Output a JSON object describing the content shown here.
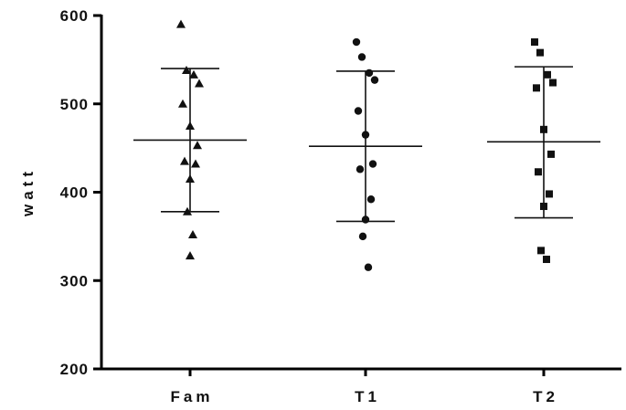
{
  "chart_data": {
    "type": "scatter",
    "ylabel": "watt",
    "ylim": [
      200,
      600
    ],
    "yticks": [
      200,
      300,
      400,
      500,
      600
    ],
    "categories": [
      "Fam",
      "T1",
      "T2"
    ],
    "series": [
      {
        "name": "",
        "category": "Fam",
        "marker": "triangle",
        "values": [
          590,
          538,
          533,
          523,
          500,
          475,
          453,
          435,
          432,
          415,
          378,
          352,
          328
        ],
        "mean": 459,
        "sd_upper": 540,
        "sd_lower": 378
      },
      {
        "name": "",
        "category": "T1",
        "marker": "circle",
        "values": [
          570,
          553,
          535,
          527,
          492,
          465,
          432,
          426,
          392,
          369,
          350,
          315
        ],
        "mean": 452,
        "sd_upper": 537,
        "sd_lower": 367
      },
      {
        "name": "",
        "category": "T2",
        "marker": "square",
        "values": [
          570,
          558,
          533,
          524,
          518,
          471,
          443,
          423,
          398,
          384,
          334,
          324
        ],
        "mean": 457,
        "sd_upper": 542,
        "sd_lower": 371
      }
    ],
    "grid": false,
    "legend": "none"
  }
}
